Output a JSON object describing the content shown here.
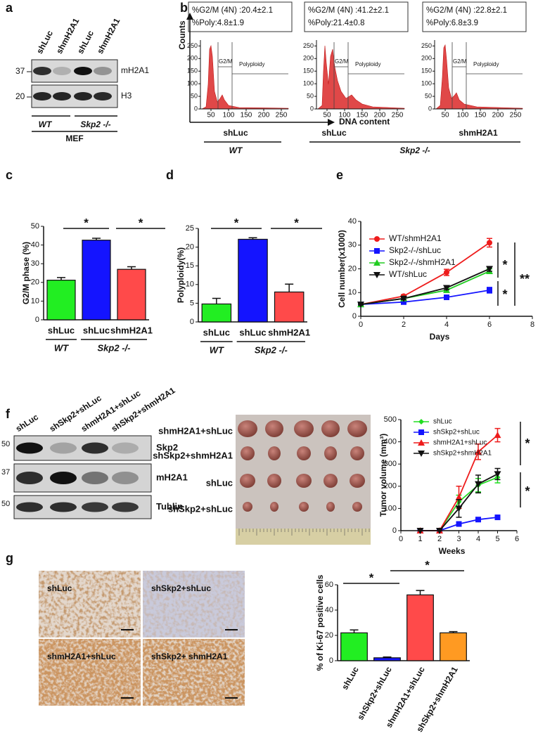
{
  "panel_letters": [
    "a",
    "b",
    "c",
    "d",
    "e",
    "f",
    "g"
  ],
  "blot_a": {
    "lanes": [
      "shLuc",
      "shmH2A1",
      "shLuc",
      "shmH2A1"
    ],
    "markers": [
      37,
      20
    ],
    "proteins": [
      "mH2A1",
      "H3"
    ],
    "groups": [
      "WT",
      "Skp2 -/-"
    ],
    "cell": "MEF"
  },
  "flow_b": {
    "y_label": "Counts",
    "x_label": "DNA content",
    "xlim": [
      20,
      270
    ],
    "ylim": [
      0,
      265
    ],
    "panels": [
      {
        "stats": [
          "%G2/M (4N) :20.4±2.1",
          "%Poly:4.8±1.9"
        ],
        "gates": [
          "G2/M",
          "Polyploidy"
        ],
        "xticks": [
          50,
          100,
          150,
          200,
          250
        ],
        "yticks": [
          0,
          50,
          100,
          150,
          200,
          250
        ]
      },
      {
        "stats": [
          "%G2/M (4N) :41.2±2.1",
          "%Poly:21.4±0.8"
        ],
        "gates": [
          "G2/M",
          "Polyploidy"
        ],
        "xticks": [
          50,
          100,
          150,
          200,
          250
        ],
        "yticks": [
          0,
          50,
          100,
          150,
          200,
          250
        ]
      },
      {
        "stats": [
          "%G2/M (4N) :22.8±2.1",
          "%Poly:6.8±3.9"
        ],
        "gates": [
          "G2/M",
          "Polyploidy"
        ],
        "xticks": [
          50,
          100,
          150,
          200,
          250
        ],
        "yticks": [
          0,
          50,
          100,
          150,
          200,
          250
        ]
      }
    ],
    "conditions": [
      "shLuc",
      "shLuc",
      "shmH2A1"
    ],
    "genotypes": [
      "WT",
      "Skp2 -/-"
    ]
  },
  "chart_data": [
    {
      "type": "bar",
      "y_label": "G2/M phase (%)",
      "categories": [
        "shLuc",
        "shLuc",
        "shmH2A1"
      ],
      "groups": [
        "WT",
        "Skp2 -/-"
      ],
      "values": [
        21.2,
        42.6,
        27
      ],
      "errors": [
        1.4,
        1,
        1.4
      ],
      "colors": [
        "#22ee22",
        "#1414ff",
        "#ff4a4a"
      ],
      "ylim": [
        0,
        50
      ],
      "yticks": [
        0,
        10,
        20,
        30,
        40,
        50
      ],
      "annotations": [
        "*",
        "*"
      ]
    },
    {
      "type": "bar",
      "y_label": "Polyploidy(%)",
      "categories": [
        "shLuc",
        "shLuc",
        "shmH2A1"
      ],
      "groups": [
        "WT",
        "Skp2 -/-"
      ],
      "values": [
        4.8,
        22.1,
        8
      ],
      "errors": [
        1.5,
        0.4,
        2.1
      ],
      "colors": [
        "#22ee22",
        "#1414ff",
        "#ff4a4a"
      ],
      "ylim": [
        0,
        25
      ],
      "yticks": [
        0,
        5,
        10,
        15,
        20,
        25
      ],
      "annotations": [
        "*",
        "*"
      ]
    },
    {
      "type": "line",
      "x_label": "Days",
      "y_label": "Cell number(x1000)",
      "x": [
        0,
        2,
        4,
        6
      ],
      "series": [
        {
          "name": "WT/shmH2A1",
          "color": "#ee1c1c",
          "marker": "circle",
          "values": [
            5,
            8.5,
            18.5,
            31
          ],
          "errors": [
            0.4,
            0.6,
            1.3,
            1.8
          ]
        },
        {
          "name": "Skp2-/-/shLuc",
          "color": "#1414ff",
          "marker": "square",
          "values": [
            5,
            6,
            8,
            11
          ],
          "errors": [
            0.3,
            0.5,
            0.6,
            1.2
          ]
        },
        {
          "name": "Skp2-/-/shmH2A1",
          "color": "#22cc22",
          "marker": "triangle",
          "values": [
            5,
            7.5,
            11,
            19
          ],
          "errors": [
            0.3,
            0.5,
            0.8,
            1
          ]
        },
        {
          "name": "WT/shLuc",
          "color": "#111111",
          "marker": "down-triangle",
          "values": [
            5,
            7.5,
            12,
            20
          ],
          "errors": [
            0.3,
            0.5,
            0.8,
            1
          ]
        }
      ],
      "xlim": [
        0,
        8
      ],
      "xticks": [
        0,
        2,
        4,
        6,
        8
      ],
      "ylim": [
        0,
        40
      ],
      "yticks": [
        0,
        10,
        20,
        30,
        40
      ],
      "legend": "top-left",
      "annotations": [
        "*",
        "*",
        "**"
      ]
    },
    {
      "type": "line",
      "x_label": "Weeks",
      "y_label": "Tumor volume (mm³)",
      "x": [
        1,
        2,
        3,
        4,
        5
      ],
      "series": [
        {
          "name": "shLuc",
          "color": "#22dd22",
          "marker": "diamond",
          "values": [
            0,
            0,
            130,
            205,
            240
          ],
          "errors": [
            0,
            0,
            30,
            30,
            25
          ]
        },
        {
          "name": "shSkp2+shLuc",
          "color": "#1414ff",
          "marker": "square",
          "values": [
            0,
            0,
            30,
            50,
            60
          ],
          "errors": [
            0,
            0,
            10,
            8,
            8
          ]
        },
        {
          "name": "shmH2A1+shLuc",
          "color": "#ee1c1c",
          "marker": "triangle",
          "values": [
            0,
            0,
            150,
            355,
            430
          ],
          "errors": [
            0,
            0,
            50,
            35,
            30
          ]
        },
        {
          "name": "shSkp2+shmH2A1",
          "color": "#111111",
          "marker": "down-triangle",
          "values": [
            0,
            0,
            100,
            210,
            255
          ],
          "errors": [
            0,
            0,
            40,
            40,
            25
          ]
        }
      ],
      "xlim": [
        0,
        6
      ],
      "xticks": [
        0,
        1,
        2,
        3,
        4,
        5,
        6
      ],
      "ylim": [
        0,
        500
      ],
      "yticks": [
        0,
        100,
        200,
        300,
        400,
        500
      ],
      "legend": "top-left",
      "annotations": [
        "*",
        "*"
      ]
    },
    {
      "type": "bar",
      "y_label": "% of Ki-67 positive cells",
      "categories": [
        "shLuc",
        "shSkp2+shLuc",
        "shmH2A1+shLuc",
        "shSkp2+shmH2A1"
      ],
      "values": [
        22,
        2.3,
        52,
        22
      ],
      "errors": [
        2.3,
        0.6,
        3.5,
        1
      ],
      "colors": [
        "#22ee22",
        "#1414ff",
        "#ff4a4a",
        "#ff9a22"
      ],
      "ylim": [
        0,
        60
      ],
      "yticks": [
        0,
        20,
        40,
        60
      ],
      "annotations": [
        "*",
        "*"
      ]
    }
  ],
  "blot_f": {
    "lanes": [
      "shLuc",
      "shSkp2+shLuc",
      "shmH2A1+shLuc",
      "shSkp2+shmH2A1"
    ],
    "markers": [
      50,
      37,
      50
    ],
    "proteins": [
      "Skp2",
      "mH2A1",
      "Tublin"
    ]
  },
  "tumor_photo": {
    "rows": [
      "shmH2A1+shLuc",
      "shSkp2+shmH2A1",
      "shLuc",
      "shSkp2+shLuc"
    ]
  },
  "ihc": {
    "labels": [
      "shLuc",
      "shSkp2+shLuc",
      "shmH2A1+shLuc",
      "shSkp2+ shmH2A1"
    ]
  }
}
